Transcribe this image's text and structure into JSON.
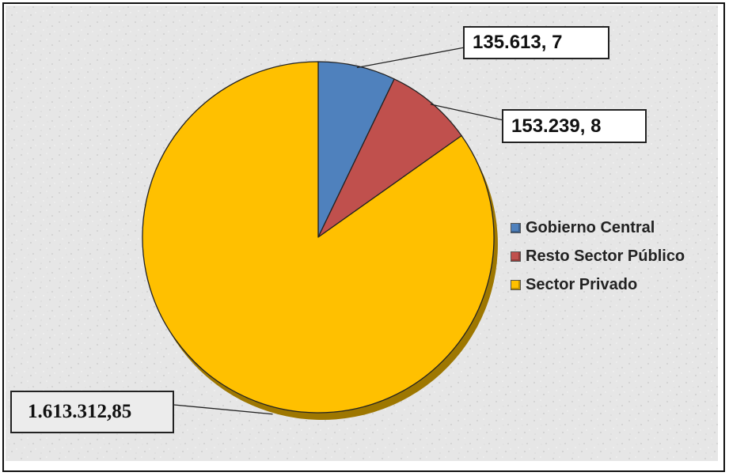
{
  "chart_data": {
    "type": "pie",
    "categories": [
      "Gobierno Central",
      "Resto Sector Público",
      "Sector Privado"
    ],
    "values": [
      135613.7,
      153239.8,
      1613312.85
    ],
    "data_labels": [
      "135.613, 7",
      "153.239, 8",
      "1.613.312,85"
    ],
    "colors": [
      "#4f81bd",
      "#c0504d",
      "#ffc000"
    ],
    "legend": {
      "position": "right",
      "entries": [
        "Gobierno Central",
        "Resto Sector Público",
        "Sector Privado"
      ]
    },
    "style": "3d-pie",
    "title": "",
    "start_angle": "12 o'clock",
    "direction": "clockwise"
  }
}
